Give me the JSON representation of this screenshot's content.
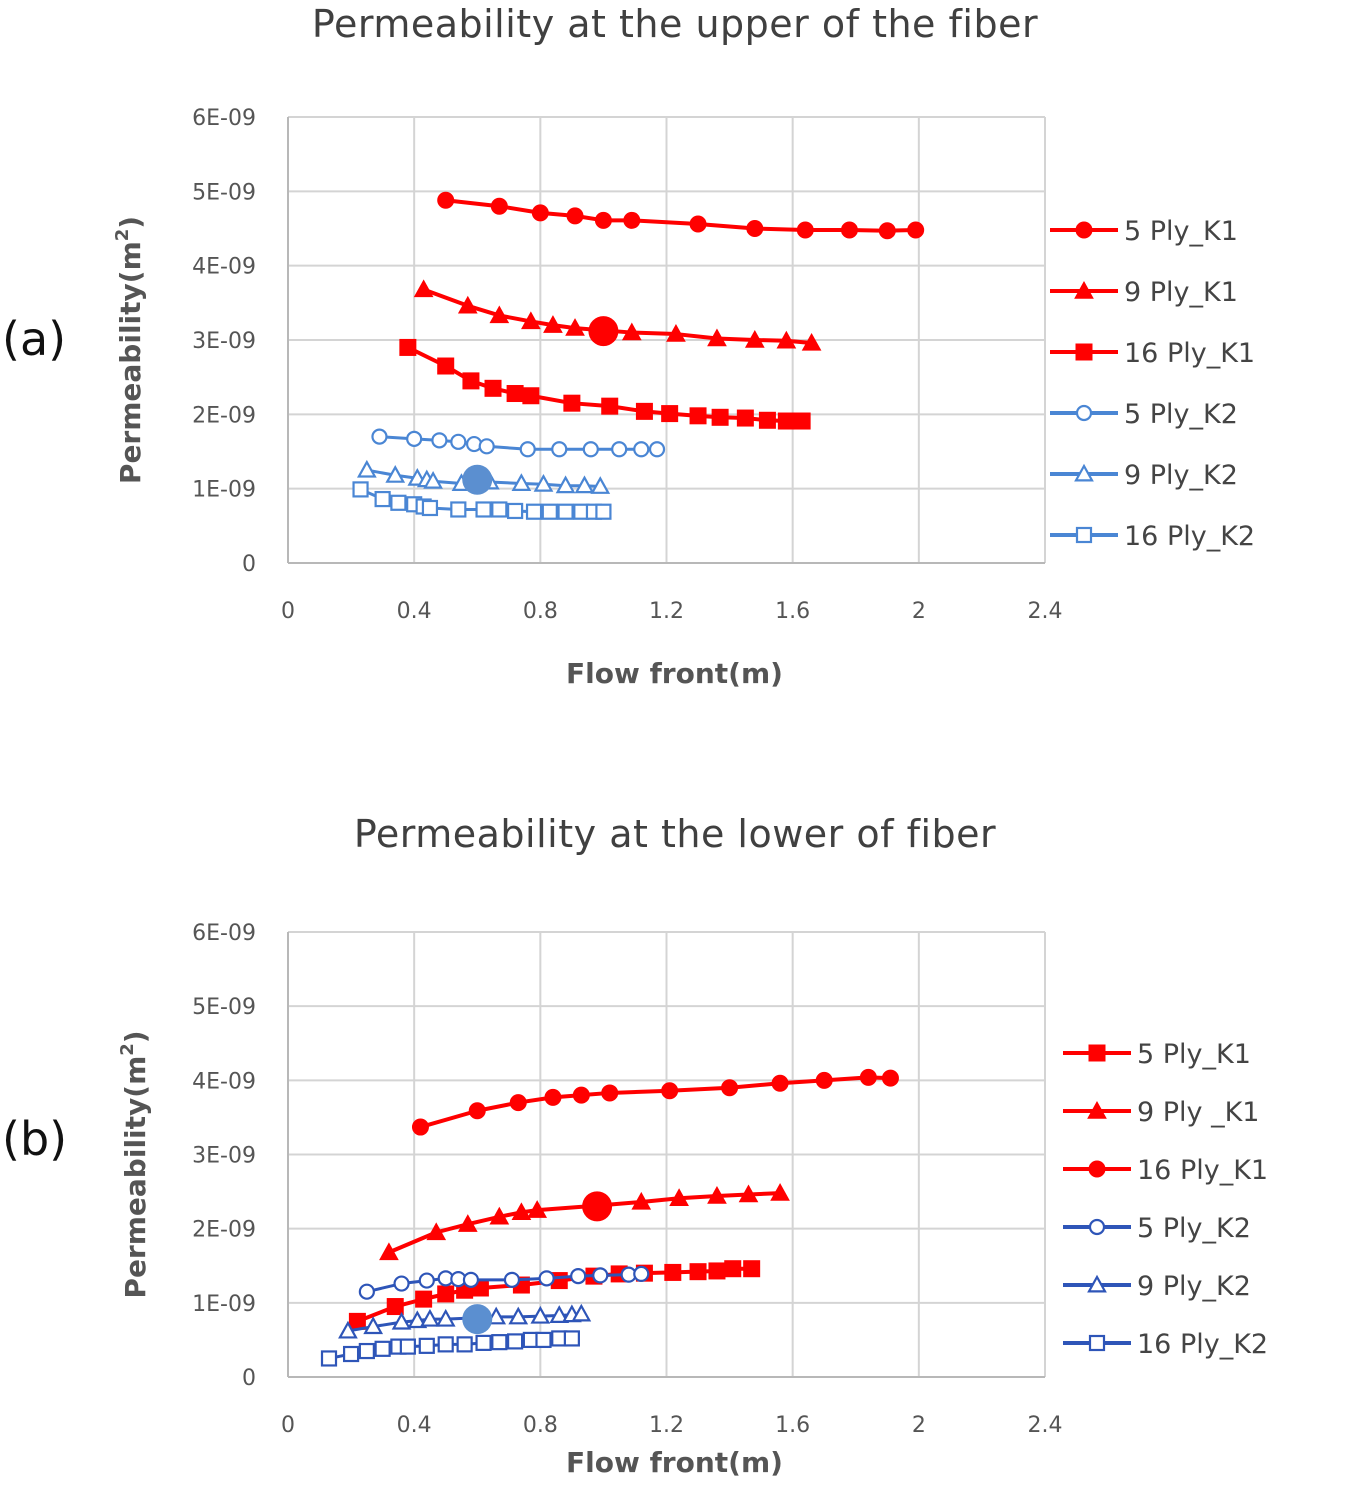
{
  "chart_data": [
    {
      "id": "a",
      "panel_label": "(a)",
      "type": "line",
      "title": "Permeability  at the upper of the fiber",
      "xlabel": "Flow front(m)",
      "ylabel": "Permeability(m",
      "ylabel_sup": "2",
      "ylabel_close": ")",
      "xlim": [
        0,
        2.4
      ],
      "ylim": [
        0,
        6e-09
      ],
      "xticks": [
        0,
        0.4,
        0.8,
        1.2,
        1.6,
        2,
        2.4
      ],
      "xtick_labels": [
        "0",
        "0.4",
        "0.8",
        "1.2",
        "1.6",
        "2",
        "2.4"
      ],
      "yticks": [
        0,
        1e-09,
        2e-09,
        3e-09,
        4e-09,
        5e-09,
        6e-09
      ],
      "ytick_labels": [
        "0",
        "1E-09",
        "2E-09",
        "3E-09",
        "4E-09",
        "5E-09",
        "6E-09"
      ],
      "grid": true,
      "legend_position": "right",
      "series": [
        {
          "name": "5 Ply_K1",
          "color": "#ff0000",
          "marker": "circle",
          "filled": true,
          "x": [
            0.5,
            0.67,
            0.8,
            0.91,
            1.0,
            1.09,
            1.3,
            1.48,
            1.64,
            1.78,
            1.9,
            1.99
          ],
          "y": [
            4.88e-09,
            4.8e-09,
            4.71e-09,
            4.67e-09,
            4.61e-09,
            4.61e-09,
            4.56e-09,
            4.5e-09,
            4.48e-09,
            4.48e-09,
            4.47e-09,
            4.48e-09
          ]
        },
        {
          "name": "9 Ply_K1",
          "color": "#ff0000",
          "marker": "triangle",
          "filled": true,
          "x": [
            0.43,
            0.57,
            0.67,
            0.77,
            0.84,
            0.91,
            1.09,
            1.23,
            1.36,
            1.48,
            1.58,
            1.66
          ],
          "y": [
            3.68e-09,
            3.46e-09,
            3.33e-09,
            3.25e-09,
            3.2e-09,
            3.16e-09,
            3.1e-09,
            3.08e-09,
            3.02e-09,
            3e-09,
            2.99e-09,
            2.96e-09
          ]
        },
        {
          "name": "16 Ply_K1",
          "color": "#ff0000",
          "marker": "square",
          "filled": true,
          "x": [
            0.38,
            0.5,
            0.58,
            0.65,
            0.72,
            0.77,
            0.9,
            1.02,
            1.13,
            1.21,
            1.3,
            1.37,
            1.45,
            1.52,
            1.58,
            1.63
          ],
          "y": [
            2.9e-09,
            2.65e-09,
            2.45e-09,
            2.35e-09,
            2.28e-09,
            2.25e-09,
            2.15e-09,
            2.11e-09,
            2.04e-09,
            2.01e-09,
            1.98e-09,
            1.96e-09,
            1.95e-09,
            1.92e-09,
            1.91e-09,
            1.91e-09
          ]
        },
        {
          "name": "5 Ply_K2",
          "color": "#4a86d4",
          "marker": "circle",
          "filled": false,
          "x": [
            0.29,
            0.4,
            0.48,
            0.54,
            0.59,
            0.63,
            0.76,
            0.86,
            0.96,
            1.05,
            1.12,
            1.17
          ],
          "y": [
            1.7e-09,
            1.67e-09,
            1.65e-09,
            1.63e-09,
            1.6e-09,
            1.57e-09,
            1.53e-09,
            1.53e-09,
            1.53e-09,
            1.53e-09,
            1.53e-09,
            1.53e-09
          ]
        },
        {
          "name": "9 Ply_K2",
          "color": "#4a86d4",
          "marker": "triangle",
          "filled": false,
          "x": [
            0.25,
            0.34,
            0.41,
            0.44,
            0.46,
            0.55,
            0.64,
            0.74,
            0.81,
            0.88,
            0.94,
            0.99
          ],
          "y": [
            1.25e-09,
            1.18e-09,
            1.14e-09,
            1.12e-09,
            1.1e-09,
            1.07e-09,
            1.09e-09,
            1.07e-09,
            1.06e-09,
            1.04e-09,
            1.04e-09,
            1.03e-09
          ]
        },
        {
          "name": "16 Ply_K2",
          "color": "#4a86d4",
          "marker": "square",
          "filled": false,
          "x": [
            0.23,
            0.3,
            0.35,
            0.4,
            0.43,
            0.45,
            0.54,
            0.62,
            0.67,
            0.72,
            0.78,
            0.83,
            0.88,
            0.93,
            0.97,
            1.0
          ],
          "y": [
            9.9e-10,
            8.6e-10,
            8.1e-10,
            7.9e-10,
            7.6e-10,
            7.4e-10,
            7.2e-10,
            7.2e-10,
            7.2e-10,
            7e-10,
            6.9e-10,
            6.9e-10,
            6.9e-10,
            6.9e-10,
            6.9e-10,
            6.9e-10
          ]
        }
      ],
      "highlights": [
        {
          "x": 1.0,
          "y": 3.12e-09,
          "color": "#ff0000"
        },
        {
          "x": 0.6,
          "y": 1.12e-09,
          "color": "#5b8fd0"
        }
      ]
    },
    {
      "id": "b",
      "panel_label": "(b)",
      "type": "line",
      "title": "Permeability  at the lower of  fiber",
      "xlabel": "Flow front(m)",
      "ylabel": "Permeability(m",
      "ylabel_sup": "2",
      "ylabel_close": ")",
      "xlim": [
        0,
        2.4
      ],
      "ylim": [
        0,
        6e-09
      ],
      "xticks": [
        0,
        0.4,
        0.8,
        1.2,
        1.6,
        2,
        2.4
      ],
      "xtick_labels": [
        "0",
        "0.4",
        "0.8",
        "1.2",
        "1.6",
        "2",
        "2.4"
      ],
      "yticks": [
        0,
        1e-09,
        2e-09,
        3e-09,
        4e-09,
        5e-09,
        6e-09
      ],
      "ytick_labels": [
        "0",
        "1E-09",
        "2E-09",
        "3E-09",
        "4E-09",
        "5E-09",
        "6E-09"
      ],
      "grid": true,
      "legend_position": "right",
      "series": [
        {
          "name": "5 Ply_K1",
          "color": "#ff0000",
          "marker": "square",
          "filled": true,
          "x": [
            0.22,
            0.34,
            0.43,
            0.5,
            0.56,
            0.61,
            0.74,
            0.86,
            0.97,
            1.05,
            1.13,
            1.22,
            1.3,
            1.36,
            1.41,
            1.47
          ],
          "y": [
            7.5e-10,
            9.5e-10,
            1.05e-09,
            1.12e-09,
            1.17e-09,
            1.2e-09,
            1.24e-09,
            1.3e-09,
            1.36e-09,
            1.39e-09,
            1.4e-09,
            1.41e-09,
            1.42e-09,
            1.43e-09,
            1.46e-09,
            1.46e-09
          ]
        },
        {
          "name": "9 Ply _K1",
          "color": "#ff0000",
          "marker": "triangle",
          "filled": true,
          "x": [
            0.32,
            0.47,
            0.57,
            0.67,
            0.74,
            0.79,
            0.98,
            1.12,
            1.24,
            1.36,
            1.46,
            1.56
          ],
          "y": [
            1.68e-09,
            1.95e-09,
            2.06e-09,
            2.16e-09,
            2.22e-09,
            2.25e-09,
            2.31e-09,
            2.36e-09,
            2.41e-09,
            2.44e-09,
            2.46e-09,
            2.48e-09
          ]
        },
        {
          "name": "16 Ply_K1",
          "color": "#ff0000",
          "marker": "circle",
          "filled": true,
          "x": [
            0.42,
            0.6,
            0.73,
            0.84,
            0.93,
            1.02,
            1.21,
            1.4,
            1.56,
            1.7,
            1.84,
            1.91
          ],
          "y": [
            3.37e-09,
            3.59e-09,
            3.7e-09,
            3.77e-09,
            3.8e-09,
            3.83e-09,
            3.86e-09,
            3.9e-09,
            3.96e-09,
            4e-09,
            4.04e-09,
            4.03e-09
          ]
        },
        {
          "name": "5 Ply_K2",
          "color": "#2e55b8",
          "marker": "circle",
          "filled": false,
          "x": [
            0.25,
            0.36,
            0.44,
            0.5,
            0.54,
            0.58,
            0.71,
            0.82,
            0.92,
            0.99,
            1.08,
            1.12
          ],
          "y": [
            1.15e-09,
            1.26e-09,
            1.3e-09,
            1.33e-09,
            1.32e-09,
            1.31e-09,
            1.31e-09,
            1.33e-09,
            1.36e-09,
            1.37e-09,
            1.38e-09,
            1.39e-09
          ]
        },
        {
          "name": "9 Ply_K2",
          "color": "#2e55b8",
          "marker": "triangle",
          "filled": false,
          "x": [
            0.19,
            0.27,
            0.36,
            0.41,
            0.45,
            0.5,
            0.61,
            0.66,
            0.73,
            0.8,
            0.86,
            0.9,
            0.93
          ],
          "y": [
            6.2e-10,
            6.8e-10,
            7.4e-10,
            7.6e-10,
            7.8e-10,
            7.8e-10,
            8e-10,
            8.1e-10,
            8.1e-10,
            8.2e-10,
            8.3e-10,
            8.4e-10,
            8.5e-10
          ]
        },
        {
          "name": "16 Ply_K2",
          "color": "#2e55b8",
          "marker": "square",
          "filled": false,
          "x": [
            0.13,
            0.2,
            0.25,
            0.3,
            0.35,
            0.38,
            0.44,
            0.5,
            0.56,
            0.62,
            0.67,
            0.72,
            0.77,
            0.81,
            0.86,
            0.9
          ],
          "y": [
            2.5e-10,
            3.1e-10,
            3.5e-10,
            3.8e-10,
            4.1e-10,
            4.1e-10,
            4.2e-10,
            4.4e-10,
            4.4e-10,
            4.6e-10,
            4.7e-10,
            4.8e-10,
            5e-10,
            5e-10,
            5.2e-10,
            5.2e-10
          ]
        }
      ],
      "highlights": [
        {
          "x": 0.98,
          "y": 2.3e-09,
          "color": "#ff0000"
        },
        {
          "x": 0.6,
          "y": 7.8e-10,
          "color": "#5b8fd0"
        }
      ]
    }
  ]
}
